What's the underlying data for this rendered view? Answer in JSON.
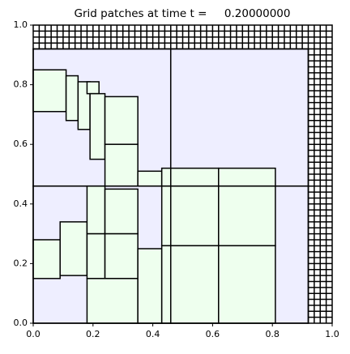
{
  "chart_data": {
    "type": "patches",
    "title": "Grid patches at time t =     0.20000000",
    "xlim": [
      0,
      1
    ],
    "ylim": [
      0,
      1
    ],
    "xticks": [
      {
        "value": 0,
        "label": "0.0"
      },
      {
        "value": 0.2,
        "label": "0.2"
      },
      {
        "value": 0.4,
        "label": "0.4"
      },
      {
        "value": 0.6,
        "label": "0.6"
      },
      {
        "value": 0.8,
        "label": "0.8"
      },
      {
        "value": 1,
        "label": "1.0"
      }
    ],
    "yticks": [
      {
        "value": 0,
        "label": "0.0"
      },
      {
        "value": 0.2,
        "label": "0.2"
      },
      {
        "value": 0.4,
        "label": "0.4"
      },
      {
        "value": 0.6,
        "label": "0.6"
      },
      {
        "value": 0.8,
        "label": "0.8"
      },
      {
        "value": 1,
        "label": "1.0"
      }
    ],
    "levels": [
      {
        "color": "#eeeeff",
        "patches": [
          {
            "x": [
              0,
              0.46
            ],
            "y": [
              0,
              0.46
            ]
          },
          {
            "x": [
              0.46,
              0.92
            ],
            "y": [
              0,
              0.46
            ]
          },
          {
            "x": [
              0,
              0.46
            ],
            "y": [
              0.46,
              0.92
            ]
          },
          {
            "x": [
              0.46,
              0.92
            ],
            "y": [
              0.46,
              0.92
            ]
          }
        ]
      },
      {
        "color": "#eeffee",
        "patches": [
          {
            "x": [
              0,
              0.11
            ],
            "y": [
              0.71,
              0.85
            ]
          },
          {
            "x": [
              0.11,
              0.15
            ],
            "y": [
              0.68,
              0.83
            ]
          },
          {
            "x": [
              0.15,
              0.19
            ],
            "y": [
              0.65,
              0.81
            ]
          },
          {
            "x": [
              0.18,
              0.22
            ],
            "y": [
              0.77,
              0.81
            ]
          },
          {
            "x": [
              0.19,
              0.24
            ],
            "y": [
              0.55,
              0.77
            ]
          },
          {
            "x": [
              0.24,
              0.35
            ],
            "y": [
              0.6,
              0.76
            ]
          },
          {
            "x": [
              0.24,
              0.35
            ],
            "y": [
              0.46,
              0.6
            ]
          },
          {
            "x": [
              0.35,
              0.43
            ],
            "y": [
              0.46,
              0.51
            ]
          },
          {
            "x": [
              0.43,
              0.62
            ],
            "y": [
              0.46,
              0.52
            ]
          },
          {
            "x": [
              0.62,
              0.81
            ],
            "y": [
              0.46,
              0.52
            ]
          },
          {
            "x": [
              0,
              0.09
            ],
            "y": [
              0.15,
              0.28
            ]
          },
          {
            "x": [
              0.09,
              0.18
            ],
            "y": [
              0.16,
              0.34
            ]
          },
          {
            "x": [
              0.18,
              0.24
            ],
            "y": [
              0.3,
              0.46
            ]
          },
          {
            "x": [
              0.18,
              0.24
            ],
            "y": [
              0.15,
              0.3
            ]
          },
          {
            "x": [
              0.24,
              0.35
            ],
            "y": [
              0.3,
              0.45
            ]
          },
          {
            "x": [
              0.24,
              0.35
            ],
            "y": [
              0.15,
              0.3
            ]
          },
          {
            "x": [
              0.18,
              0.35
            ],
            "y": [
              0,
              0.15
            ]
          },
          {
            "x": [
              0.35,
              0.43
            ],
            "y": [
              0,
              0.25
            ]
          },
          {
            "x": [
              0.43,
              0.62
            ],
            "y": [
              0.26,
              0.46
            ]
          },
          {
            "x": [
              0.62,
              0.81
            ],
            "y": [
              0.26,
              0.46
            ]
          },
          {
            "x": [
              0.43,
              0.62
            ],
            "y": [
              0,
              0.26
            ]
          },
          {
            "x": [
              0.62,
              0.81
            ],
            "y": [
              0,
              0.26
            ]
          }
        ]
      }
    ],
    "strips": [
      {
        "x": [
          0,
          1
        ],
        "y": [
          0.92,
          1
        ],
        "cell": 0.02,
        "color": "#ffffff"
      },
      {
        "x": [
          0.92,
          1
        ],
        "y": [
          0,
          0.92
        ],
        "cell": 0.02,
        "color": "#ffffff"
      }
    ]
  }
}
